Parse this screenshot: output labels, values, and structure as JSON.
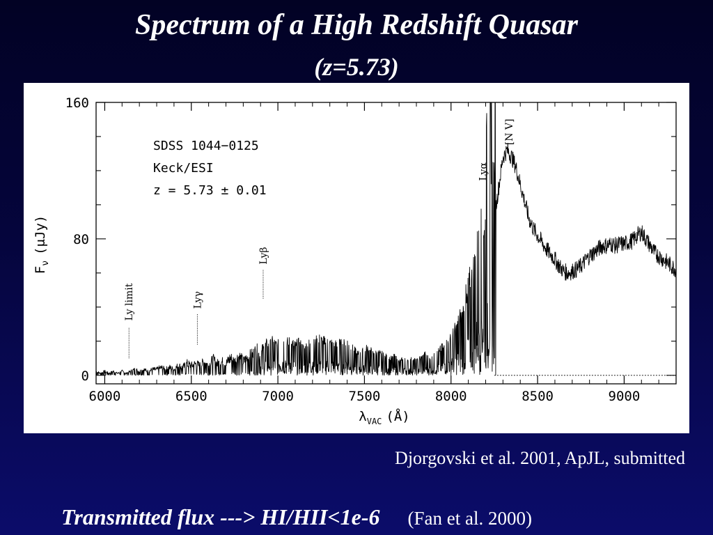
{
  "slide": {
    "title": "Spectrum of a High Redshift Quasar",
    "subtitle": "(z=5.73)",
    "credit": "Djorgovski et al. 2001, ApJL, submitted",
    "footer_main": "Transmitted flux ---> HI/HII<1e-6",
    "footer_ref": "(Fan et al. 2000)"
  },
  "chart_data": {
    "type": "line",
    "xlabel": "λVAC (Å)",
    "xlabel_main": "λ",
    "xlabel_sub": "VAC",
    "xlabel_unit": "(Å)",
    "ylabel": "Fν (μJy)",
    "ylabel_main": "F",
    "ylabel_sub": "ν",
    "ylabel_unit": "(μJy)",
    "xlim": [
      5950,
      9300
    ],
    "ylim": [
      -5,
      160
    ],
    "x_ticks": [
      {
        "value": 6000,
        "label": "6000"
      },
      {
        "value": 6500,
        "label": "6500"
      },
      {
        "value": 7000,
        "label": "7000"
      },
      {
        "value": 7500,
        "label": "7500"
      },
      {
        "value": 8000,
        "label": "8000"
      },
      {
        "value": 8500,
        "label": "8500"
      },
      {
        "value": 9000,
        "label": "9000"
      }
    ],
    "y_ticks": [
      {
        "value": 0,
        "label": "0"
      },
      {
        "value": 80,
        "label": "80"
      },
      {
        "value": 160,
        "label": "160"
      }
    ],
    "annotation_lines": [
      "SDSS 1044−0125",
      "Keck/ESI",
      "z = 5.73 ± 0.01"
    ],
    "line_labels": [
      {
        "text": "Ly limit",
        "x": 6140,
        "y_line": [
          10,
          28
        ],
        "y_text": 32
      },
      {
        "text": "Lyγ",
        "x": 6535,
        "y_line": [
          18,
          36
        ],
        "y_text": 39
      },
      {
        "text": "Lyβ",
        "x": 6915,
        "y_line": [
          45,
          62
        ],
        "y_text": 65
      },
      {
        "text": "Lyα",
        "x": 8185,
        "y_line": [],
        "y_text": 114
      },
      {
        "text": "[N V]",
        "x": 8335,
        "y_line": [],
        "y_text": 135
      }
    ],
    "series": [
      {
        "type": "line",
        "points": [
          [
            5950,
            2
          ],
          [
            5975,
            1
          ],
          [
            6000,
            2
          ],
          [
            6025,
            1
          ],
          [
            6050,
            2
          ],
          [
            6075,
            1
          ],
          [
            6100,
            2
          ],
          [
            6125,
            1
          ],
          [
            6150,
            2
          ],
          [
            6175,
            3
          ],
          [
            6200,
            2
          ],
          [
            6225,
            3
          ],
          [
            6250,
            2
          ],
          [
            6275,
            3
          ],
          [
            6300,
            3
          ],
          [
            6325,
            4
          ],
          [
            6350,
            3
          ],
          [
            6375,
            4
          ],
          [
            6400,
            3
          ],
          [
            6425,
            5
          ],
          [
            6450,
            4
          ],
          [
            6475,
            6
          ],
          [
            6500,
            5
          ],
          [
            6525,
            6
          ],
          [
            6550,
            5
          ],
          [
            6575,
            7
          ],
          [
            6600,
            5
          ],
          [
            6625,
            8
          ],
          [
            6650,
            6
          ],
          [
            6675,
            7
          ],
          [
            6700,
            6
          ],
          [
            6725,
            9
          ],
          [
            6750,
            7
          ],
          [
            6775,
            10
          ],
          [
            6800,
            7
          ],
          [
            6825,
            9
          ],
          [
            6850,
            10
          ],
          [
            6875,
            12
          ],
          [
            6900,
            10
          ],
          [
            6925,
            14
          ],
          [
            6950,
            13
          ],
          [
            6975,
            15
          ],
          [
            7000,
            13
          ],
          [
            7025,
            16
          ],
          [
            7050,
            14
          ],
          [
            7075,
            15
          ],
          [
            7100,
            13
          ],
          [
            7125,
            14
          ],
          [
            7150,
            12
          ],
          [
            7175,
            14
          ],
          [
            7200,
            13
          ],
          [
            7225,
            15
          ],
          [
            7250,
            16
          ],
          [
            7275,
            14
          ],
          [
            7300,
            15
          ],
          [
            7325,
            13
          ],
          [
            7350,
            14
          ],
          [
            7375,
            13
          ],
          [
            7400,
            15
          ],
          [
            7425,
            12
          ],
          [
            7450,
            10
          ],
          [
            7475,
            9
          ],
          [
            7500,
            11
          ],
          [
            7525,
            12
          ],
          [
            7550,
            9
          ],
          [
            7575,
            10
          ],
          [
            7600,
            9
          ],
          [
            7625,
            8
          ],
          [
            7650,
            7
          ],
          [
            7675,
            8
          ],
          [
            7700,
            6
          ],
          [
            7725,
            7
          ],
          [
            7750,
            6
          ],
          [
            7775,
            7
          ],
          [
            7800,
            6
          ],
          [
            7825,
            8
          ],
          [
            7850,
            9
          ],
          [
            7875,
            7
          ],
          [
            7900,
            8
          ],
          [
            7925,
            10
          ],
          [
            7950,
            12
          ],
          [
            7975,
            14
          ],
          [
            8000,
            16
          ],
          [
            8025,
            20
          ],
          [
            8050,
            25
          ],
          [
            8075,
            30
          ],
          [
            8100,
            38
          ],
          [
            8125,
            45
          ],
          [
            8150,
            55
          ],
          [
            8175,
            62
          ],
          [
            8200,
            70
          ],
          [
            8225,
            80
          ],
          [
            8250,
            92
          ],
          [
            8275,
            110
          ],
          [
            8300,
            128
          ],
          [
            8325,
            132
          ],
          [
            8350,
            128
          ],
          [
            8375,
            122
          ],
          [
            8400,
            112
          ],
          [
            8425,
            102
          ],
          [
            8450,
            92
          ],
          [
            8475,
            86
          ],
          [
            8500,
            82
          ],
          [
            8525,
            78
          ],
          [
            8550,
            74
          ],
          [
            8575,
            71
          ],
          [
            8600,
            68
          ],
          [
            8625,
            64
          ],
          [
            8650,
            61
          ],
          [
            8675,
            60
          ],
          [
            8700,
            61
          ],
          [
            8725,
            62
          ],
          [
            8750,
            64
          ],
          [
            8775,
            67
          ],
          [
            8800,
            70
          ],
          [
            8825,
            72
          ],
          [
            8850,
            74
          ],
          [
            8875,
            76
          ],
          [
            8900,
            76
          ],
          [
            8925,
            77
          ],
          [
            8950,
            76
          ],
          [
            8975,
            77
          ],
          [
            9000,
            77
          ],
          [
            9025,
            78
          ],
          [
            9050,
            79
          ],
          [
            9075,
            82
          ],
          [
            9100,
            84
          ],
          [
            9125,
            80
          ],
          [
            9150,
            76
          ],
          [
            9175,
            72
          ],
          [
            9200,
            70
          ],
          [
            9225,
            68
          ],
          [
            9250,
            66
          ],
          [
            9275,
            64
          ],
          [
            9300,
            62
          ]
        ]
      }
    ]
  }
}
